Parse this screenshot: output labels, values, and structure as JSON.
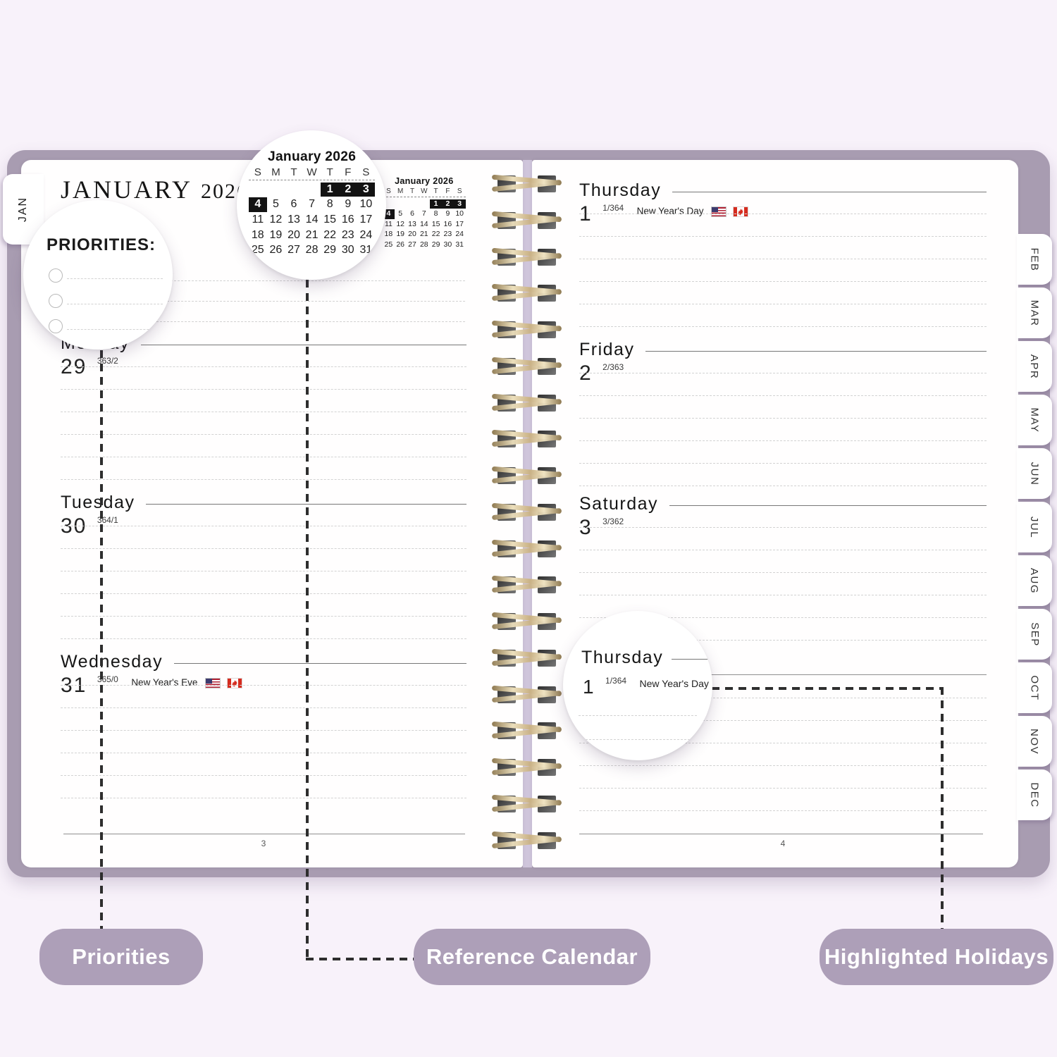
{
  "colors": {
    "background": "#f8f2fa",
    "cover": "#a89cb1",
    "pill": "#ad9fb8",
    "highlight_box": "#131313",
    "spiral_wire": "#c9b185"
  },
  "tabs": {
    "current": "JAN",
    "months": [
      "FEB",
      "MAR",
      "APR",
      "MAY",
      "JUN",
      "JUL",
      "AUG",
      "SEP",
      "OCT",
      "NOV",
      "DEC"
    ]
  },
  "mini_calendar": {
    "title": "January 2026",
    "weekdays": [
      "S",
      "M",
      "T",
      "W",
      "T",
      "F",
      "S"
    ],
    "rows": [
      [
        "",
        "",
        "",
        "",
        "1",
        "2",
        "3"
      ],
      [
        "4",
        "5",
        "6",
        "7",
        "8",
        "9",
        "10"
      ],
      [
        "11",
        "12",
        "13",
        "14",
        "15",
        "16",
        "17"
      ],
      [
        "18",
        "19",
        "20",
        "21",
        "22",
        "23",
        "24"
      ],
      [
        "25",
        "26",
        "27",
        "28",
        "29",
        "30",
        "31"
      ]
    ],
    "highlighted": [
      "1",
      "2",
      "3",
      "4"
    ]
  },
  "left_page": {
    "title_month": "JANUARY",
    "title_year": "2026",
    "priorities_heading": "PRIORITIES:",
    "page_number": "3",
    "days": [
      {
        "name": "Monday",
        "date": "29",
        "day_count": "363/2",
        "holiday": ""
      },
      {
        "name": "Tuesday",
        "date": "30",
        "day_count": "364/1",
        "holiday": ""
      },
      {
        "name": "Wednesday",
        "date": "31",
        "day_count": "365/0",
        "holiday": "New Year's Eve"
      }
    ]
  },
  "right_page": {
    "page_number": "4",
    "days": [
      {
        "name": "Thursday",
        "date": "1",
        "day_count": "1/364",
        "holiday": "New Year's Day"
      },
      {
        "name": "Friday",
        "date": "2",
        "day_count": "2/363",
        "holiday": ""
      },
      {
        "name": "Saturday",
        "date": "3",
        "day_count": "3/362",
        "holiday": ""
      }
    ]
  },
  "magnifiers": {
    "priorities_heading": "PRIORITIES:",
    "thursday": {
      "name": "Thursday",
      "date": "1",
      "day_count": "1/364",
      "holiday": "New Year's Day"
    }
  },
  "callouts": {
    "priorities": "Priorities",
    "reference_calendar": "Reference Calendar",
    "highlighted_holidays": "Highlighted Holidays"
  }
}
